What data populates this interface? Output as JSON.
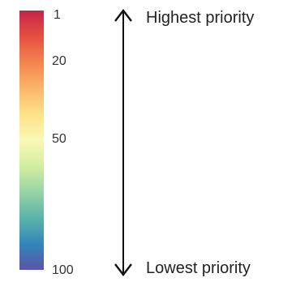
{
  "colorbar": {
    "colors": [
      "#c7244a",
      "#e4503f",
      "#f4844f",
      "#fbb56a",
      "#fde289",
      "#f9f9b4",
      "#d3eea0",
      "#97d4a4",
      "#5cb4a8",
      "#3286bb",
      "#5b55a6"
    ],
    "ticks": [
      {
        "label": "1",
        "value": 1
      },
      {
        "label": "20",
        "value": 20
      },
      {
        "label": "50",
        "value": 50
      },
      {
        "label": "100",
        "value": 100
      }
    ]
  },
  "arrow": {
    "top_label": "Highest priority",
    "bottom_label": "Lowest priority"
  }
}
